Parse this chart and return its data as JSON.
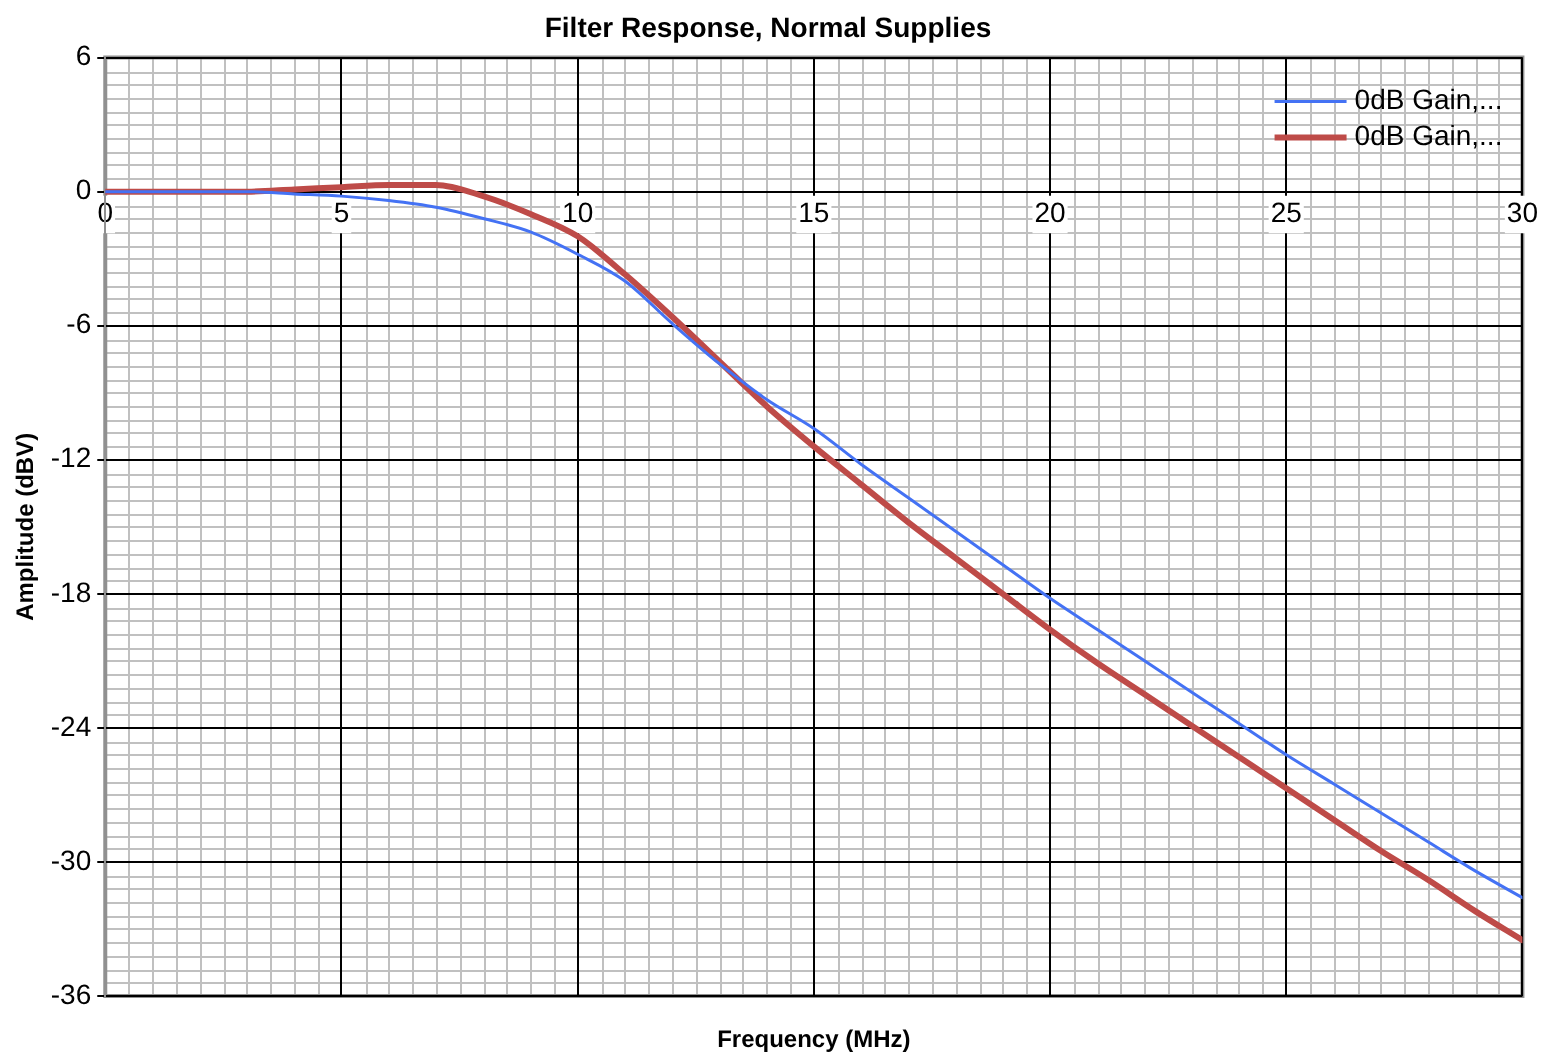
{
  "chart_data": {
    "type": "line",
    "title": "Filter Response, Normal Supplies",
    "xlabel": "Frequency (MHz)",
    "ylabel": "Amplitude (dBV)",
    "x": [
      0,
      1,
      2,
      3,
      4,
      5,
      6,
      7,
      8,
      9,
      10,
      11,
      12,
      13,
      14,
      15,
      16,
      17,
      18,
      19,
      20,
      21,
      22,
      23,
      24,
      25,
      26,
      27,
      28,
      29,
      30
    ],
    "series": [
      {
        "name": "0dB Gain,...",
        "color": "#4472f4",
        "values": [
          0,
          0,
          0,
          0,
          -0.1,
          -0.2,
          -0.4,
          -0.7,
          -1.2,
          -1.8,
          -2.8,
          -4.0,
          -5.9,
          -7.7,
          -9.3,
          -10.6,
          -12.2,
          -13.7,
          -15.2,
          -16.7,
          -18.2,
          -19.6,
          -21.0,
          -22.4,
          -23.8,
          -25.2,
          -26.5,
          -27.8,
          -29.1,
          -30.4,
          -31.6
        ]
      },
      {
        "name": "0dB Gain,...",
        "color": "#be4b48",
        "values": [
          0,
          0,
          0,
          0,
          0.1,
          0.2,
          0.3,
          0.3,
          -0.2,
          -1.0,
          -2.0,
          -3.7,
          -5.6,
          -7.6,
          -9.6,
          -11.4,
          -13.1,
          -14.8,
          -16.4,
          -18.0,
          -19.6,
          -21.1,
          -22.5,
          -23.9,
          -25.3,
          -26.7,
          -28.1,
          -29.5,
          -30.8,
          -32.2,
          -33.5
        ]
      }
    ],
    "xlim": [
      0,
      30
    ],
    "xticks": [
      0,
      5,
      10,
      15,
      20,
      25,
      30
    ],
    "ylim": [
      -36,
      6
    ],
    "yticks": [
      6,
      0,
      -6,
      -12,
      -18,
      -24,
      -30,
      -36
    ],
    "grid": true,
    "legend": "top right",
    "marker": "none",
    "line_style": "solid"
  }
}
